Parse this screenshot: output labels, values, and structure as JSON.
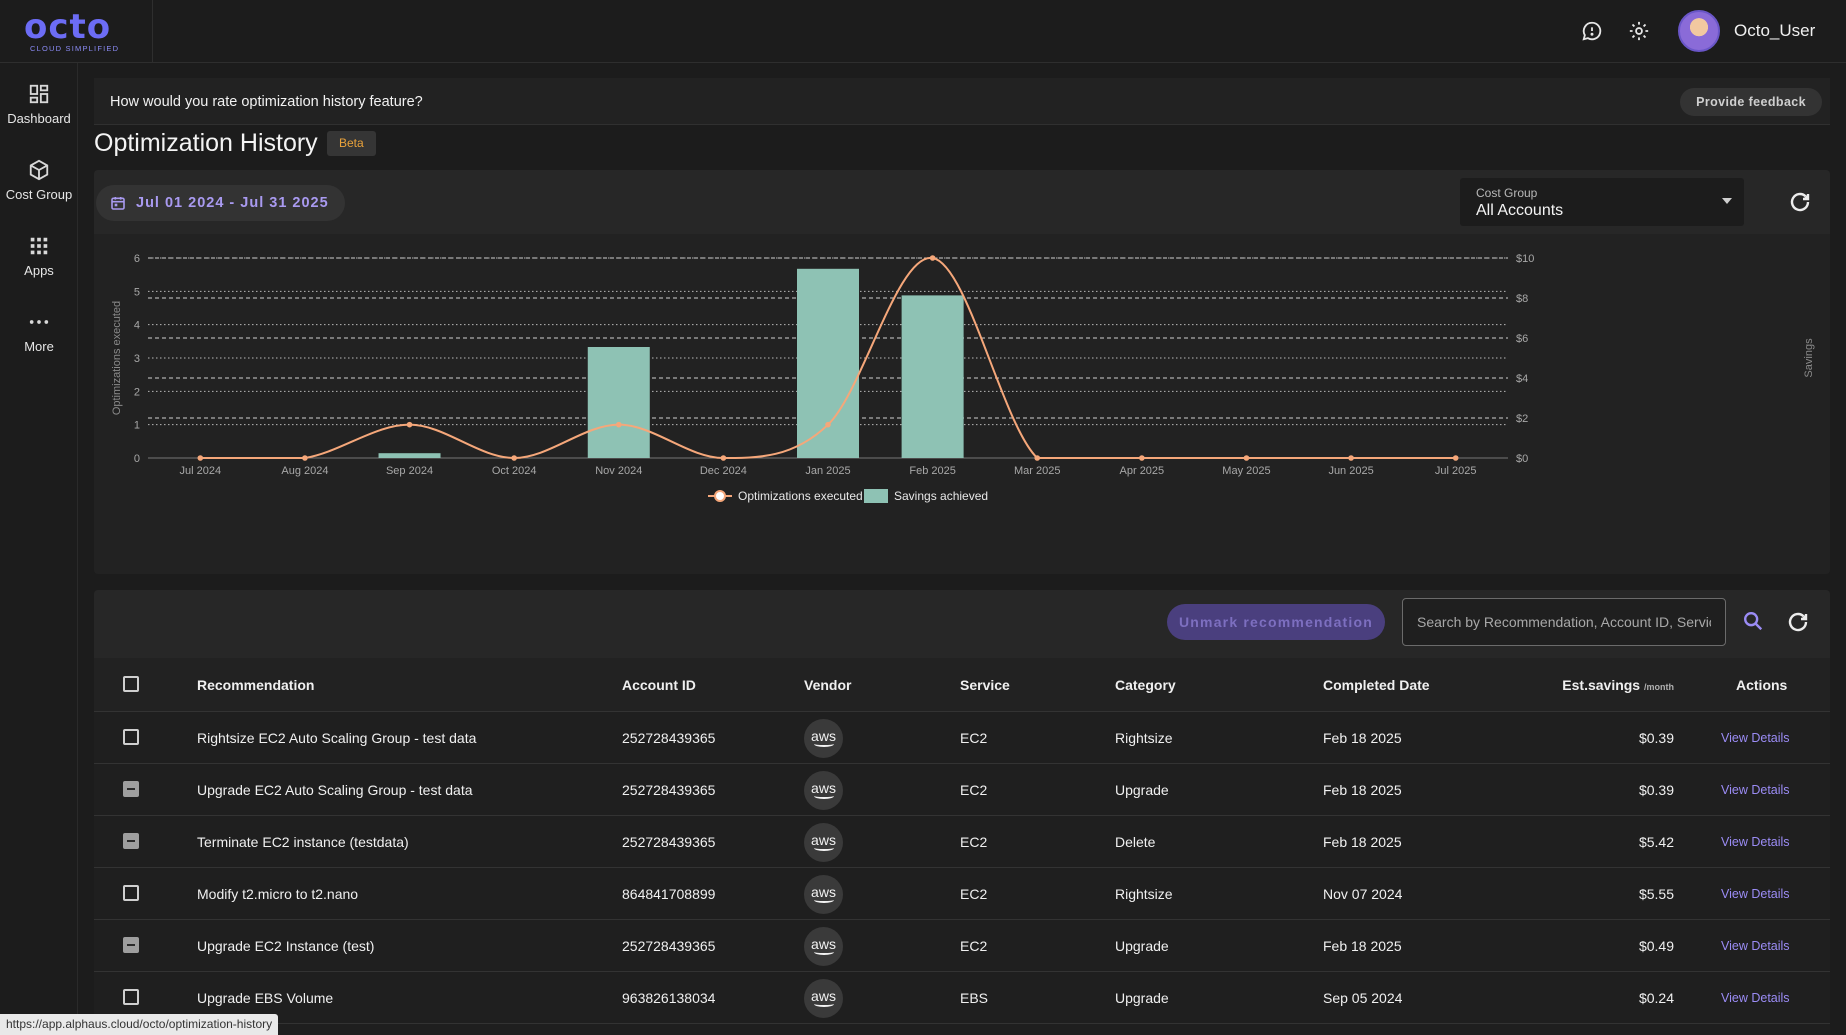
{
  "app": {
    "logo_word": "octo",
    "logo_tagline": "CLOUD SIMPLIFIED",
    "user": "Octo_User"
  },
  "icons": {
    "chat": "chat-bubble-icon",
    "settings": "gear-icon"
  },
  "nav": [
    {
      "label": "Dashboard",
      "icon": "dashboard-icon"
    },
    {
      "label": "Cost Group",
      "icon": "cube-icon"
    },
    {
      "label": "Apps",
      "icon": "apps-grid-icon"
    },
    {
      "label": "More",
      "icon": "more-dots-icon"
    }
  ],
  "feedback": {
    "question": "How would you rate optimization history feature?",
    "button": "Provide feedback"
  },
  "page": {
    "title": "Optimization History",
    "badge": "Beta"
  },
  "filters": {
    "date_range": "Jul 01 2024 - Jul 31 2025",
    "cost_group_label": "Cost Group",
    "cost_group_value": "All Accounts"
  },
  "chart_data": {
    "type": "bar",
    "categories": [
      "Jul 2024",
      "Aug 2024",
      "Sep 2024",
      "Oct 2024",
      "Nov 2024",
      "Dec 2024",
      "Jan 2025",
      "Feb 2025",
      "Mar 2025",
      "Apr 2025",
      "May 2025",
      "Jun 2025",
      "Jul 2025"
    ],
    "series": [
      {
        "name": "Optimizations executed",
        "type": "line",
        "axis": "left",
        "color": "#f5a77a",
        "values": [
          0,
          0,
          1,
          0,
          1,
          0,
          1,
          6,
          0,
          0,
          0,
          0,
          0
        ]
      },
      {
        "name": "Savings achieved",
        "type": "bar",
        "axis": "right",
        "color": "#8ec2b4",
        "values": [
          0,
          0,
          0.24,
          0,
          5.55,
          0,
          9.46,
          8.13,
          0,
          0,
          0,
          0,
          0
        ]
      }
    ],
    "ylabel": "Optimizations executed",
    "y2label": "Savings",
    "ylim": [
      0,
      6
    ],
    "y2lim": [
      0,
      10
    ],
    "yticks": [
      "0",
      "1",
      "2",
      "3",
      "4",
      "5",
      "6"
    ],
    "y2ticks": [
      "$0",
      "$2",
      "$4",
      "$6",
      "$8",
      "$10"
    ],
    "legend": "bottom-center",
    "grid": true
  },
  "table": {
    "unmark_button": "Unmark recommendation",
    "search_placeholder": "Search by Recommendation, Account ID, Service",
    "headers": {
      "recommendation": "Recommendation",
      "account": "Account ID",
      "vendor": "Vendor",
      "service": "Service",
      "category": "Category",
      "completed": "Completed Date",
      "savings": "Est.savings",
      "savings_unit": "/month",
      "actions": "Actions"
    },
    "rows": [
      {
        "recommendation": "Rightsize EC2 Auto Scaling Group - test data",
        "account": "252728439365",
        "vendor": "aws",
        "service": "EC2",
        "category": "Rightsize",
        "completed": "Feb 18 2025",
        "savings": "$0.39",
        "action": "View Details",
        "checkbox": "unchecked"
      },
      {
        "recommendation": "Upgrade EC2 Auto Scaling Group - test data",
        "account": "252728439365",
        "vendor": "aws",
        "service": "EC2",
        "category": "Upgrade",
        "completed": "Feb 18 2025",
        "savings": "$0.39",
        "action": "View Details",
        "checkbox": "indeterminate"
      },
      {
        "recommendation": "Terminate EC2 instance (testdata)",
        "account": "252728439365",
        "vendor": "aws",
        "service": "EC2",
        "category": "Delete",
        "completed": "Feb 18 2025",
        "savings": "$5.42",
        "action": "View Details",
        "checkbox": "indeterminate"
      },
      {
        "recommendation": "Modify t2.micro to t2.nano",
        "account": "864841708899",
        "vendor": "aws",
        "service": "EC2",
        "category": "Rightsize",
        "completed": "Nov 07 2024",
        "savings": "$5.55",
        "action": "View Details",
        "checkbox": "unchecked"
      },
      {
        "recommendation": "Upgrade EC2 Instance (test)",
        "account": "252728439365",
        "vendor": "aws",
        "service": "EC2",
        "category": "Upgrade",
        "completed": "Feb 18 2025",
        "savings": "$0.49",
        "action": "View Details",
        "checkbox": "indeterminate"
      },
      {
        "recommendation": "Upgrade EBS Volume",
        "account": "963826138034",
        "vendor": "aws",
        "service": "EBS",
        "category": "Upgrade",
        "completed": "Sep 05 2024",
        "savings": "$0.24",
        "action": "View Details",
        "checkbox": "unchecked"
      }
    ]
  },
  "status_url": "https://app.alphaus.cloud/octo/optimization-history"
}
